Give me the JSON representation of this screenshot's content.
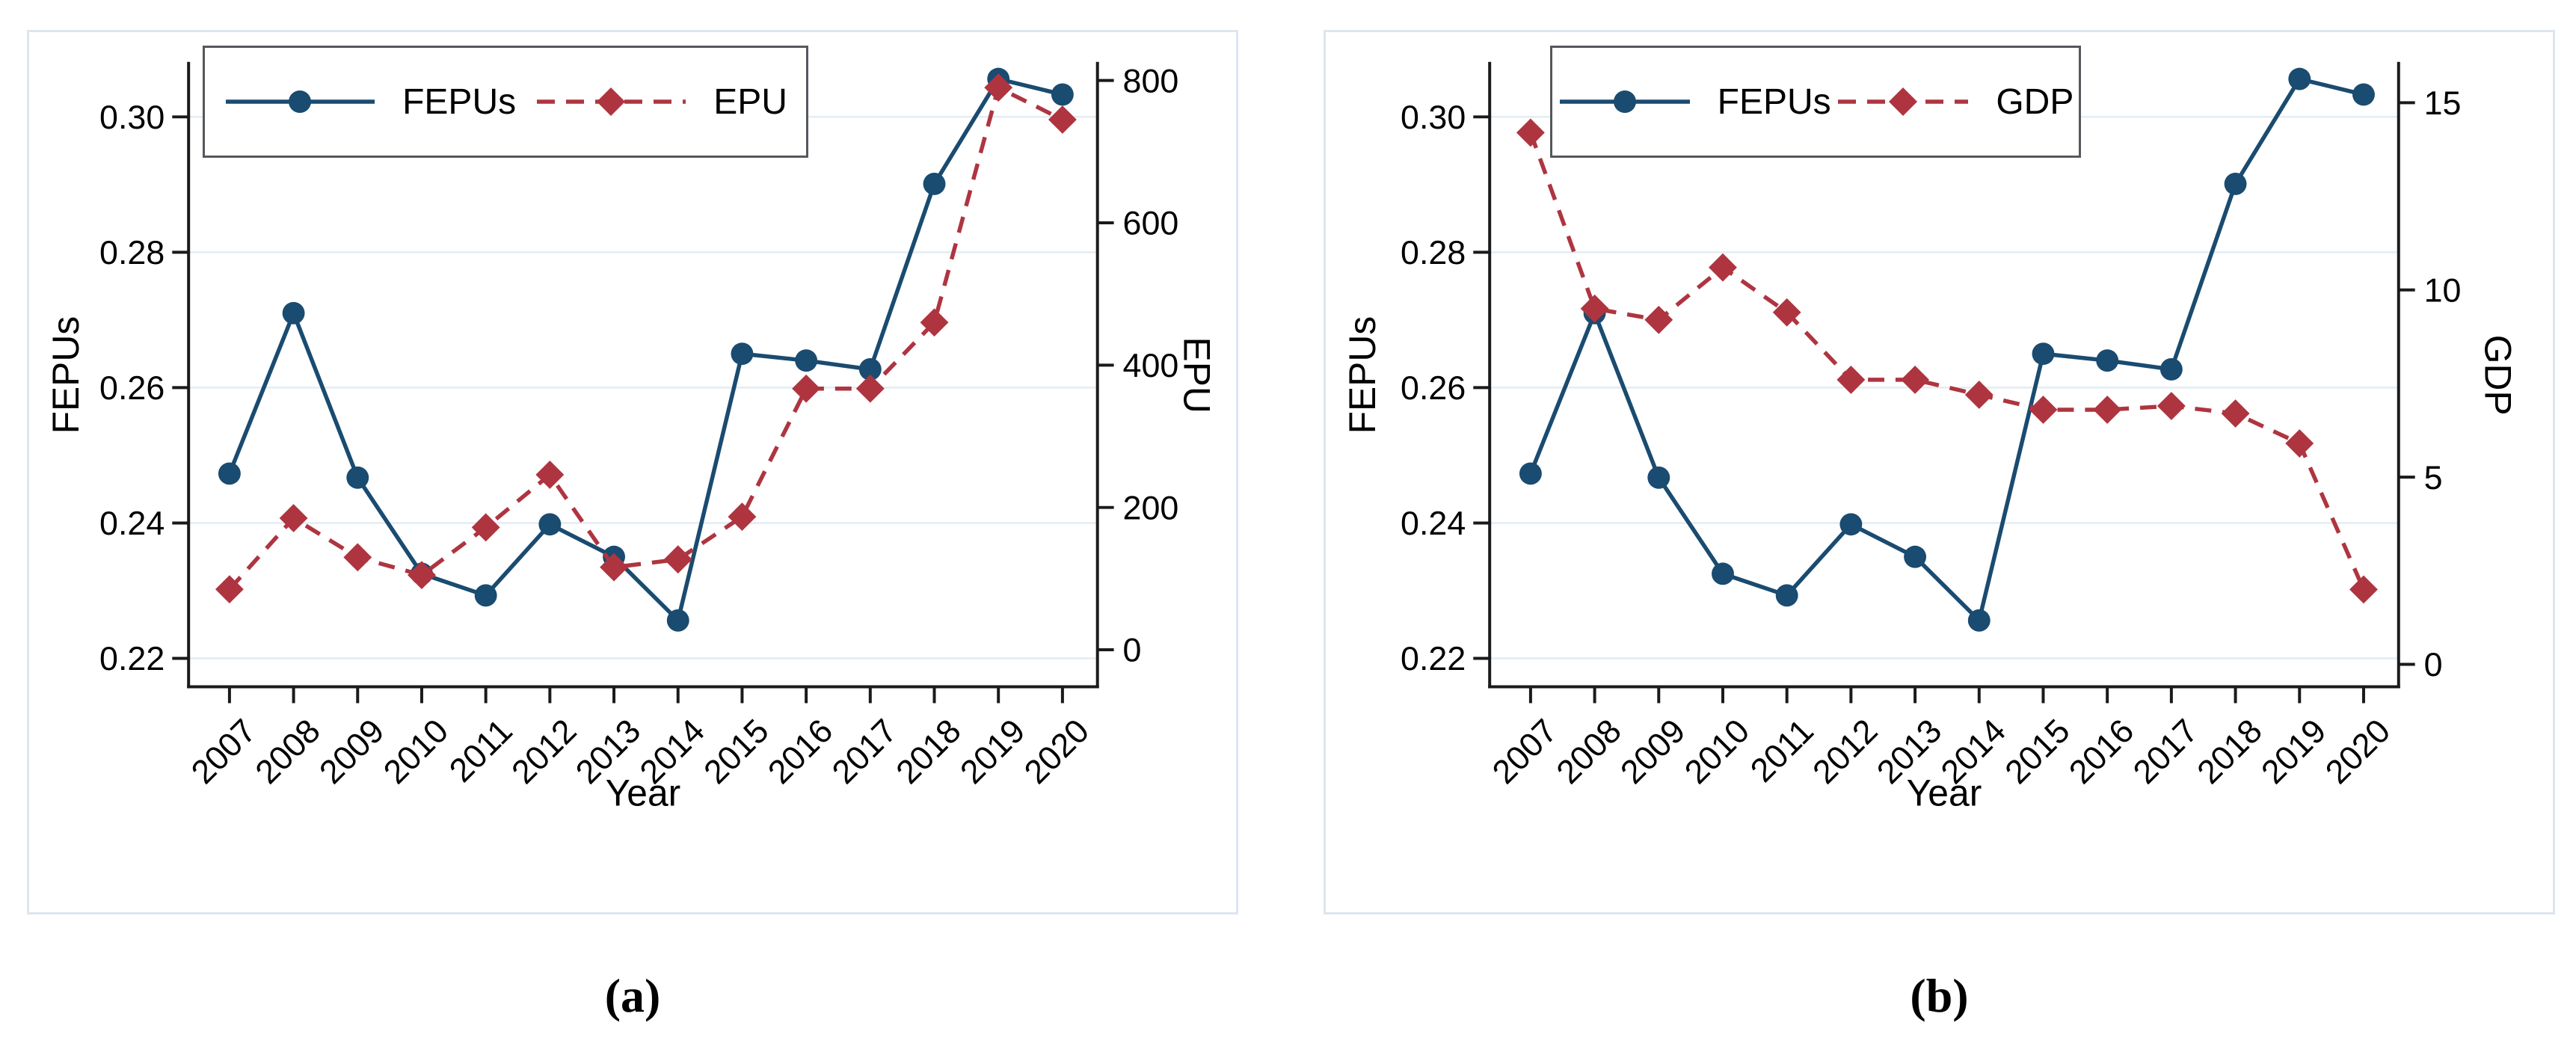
{
  "page": {
    "background": "#ffffff",
    "panel_border": "#dde5ee",
    "axis_color": "#1a1a1a",
    "grid_color": "#e4ecf3",
    "text_color": "#000000"
  },
  "chart_data": [
    {
      "id": "a",
      "caption": "(a)",
      "type": "line",
      "xlabel": "Year",
      "grid": "horizontal gridlines at left-axis ticks",
      "legend_position": "top-left-inside",
      "categories": [
        "2007",
        "2008",
        "2009",
        "2010",
        "2011",
        "2012",
        "2013",
        "2014",
        "2015",
        "2016",
        "2017",
        "2018",
        "2019",
        "2020"
      ],
      "left_axis": {
        "label": "FEPUs",
        "min": 0.2158,
        "max": 0.3079,
        "ticks": [
          0.22,
          0.24,
          0.26,
          0.28,
          0.3
        ],
        "tick_labels": [
          "0.22",
          "0.24",
          "0.26",
          "0.28",
          "0.30"
        ]
      },
      "right_axis": {
        "label": "EPU",
        "min": -52,
        "max": 824,
        "ticks": [
          0,
          200,
          400,
          600,
          800
        ],
        "tick_labels": [
          "0",
          "200",
          "400",
          "600",
          "800"
        ]
      },
      "series": [
        {
          "name": "FEPUs",
          "axis": "left",
          "color": "#1a4b70",
          "line": "solid",
          "marker": "circle",
          "values": [
            0.2473,
            0.271,
            0.2467,
            0.2325,
            0.2293,
            0.2398,
            0.235,
            0.2256,
            0.265,
            0.264,
            0.2627,
            0.2901,
            0.3056,
            0.3033
          ]
        },
        {
          "name": "EPU",
          "axis": "right",
          "color": "#ae3540",
          "line": "dashed",
          "marker": "diamond",
          "values": [
            85,
            185,
            130,
            105,
            172,
            246,
            116,
            127,
            187,
            367,
            367,
            460,
            790,
            745
          ]
        }
      ]
    },
    {
      "id": "b",
      "caption": "(b)",
      "type": "line",
      "xlabel": "Year",
      "grid": "horizontal gridlines at left-axis ticks",
      "legend_position": "top-left-inside",
      "categories": [
        "2007",
        "2008",
        "2009",
        "2010",
        "2011",
        "2012",
        "2013",
        "2014",
        "2015",
        "2016",
        "2017",
        "2018",
        "2019",
        "2020"
      ],
      "left_axis": {
        "label": "FEPUs",
        "min": 0.2158,
        "max": 0.3079,
        "ticks": [
          0.22,
          0.24,
          0.26,
          0.28,
          0.3
        ],
        "tick_labels": [
          "0.22",
          "0.24",
          "0.26",
          "0.28",
          "0.30"
        ]
      },
      "right_axis": {
        "label": "GDP",
        "min": -0.6,
        "max": 16.05,
        "ticks": [
          0,
          5,
          10,
          15
        ],
        "tick_labels": [
          "0",
          "5",
          "10",
          "15"
        ]
      },
      "series": [
        {
          "name": "FEPUs",
          "axis": "left",
          "color": "#1a4b70",
          "line": "solid",
          "marker": "circle",
          "values": [
            0.2473,
            0.271,
            0.2467,
            0.2325,
            0.2293,
            0.2398,
            0.235,
            0.2256,
            0.265,
            0.264,
            0.2627,
            0.2901,
            0.3056,
            0.3033
          ]
        },
        {
          "name": "GDP",
          "axis": "right",
          "color": "#ae3540",
          "line": "dashed",
          "marker": "diamond",
          "values": [
            14.2,
            9.5,
            9.2,
            10.6,
            9.4,
            7.6,
            7.6,
            7.2,
            6.8,
            6.8,
            6.9,
            6.7,
            5.9,
            2.0
          ]
        }
      ]
    }
  ]
}
